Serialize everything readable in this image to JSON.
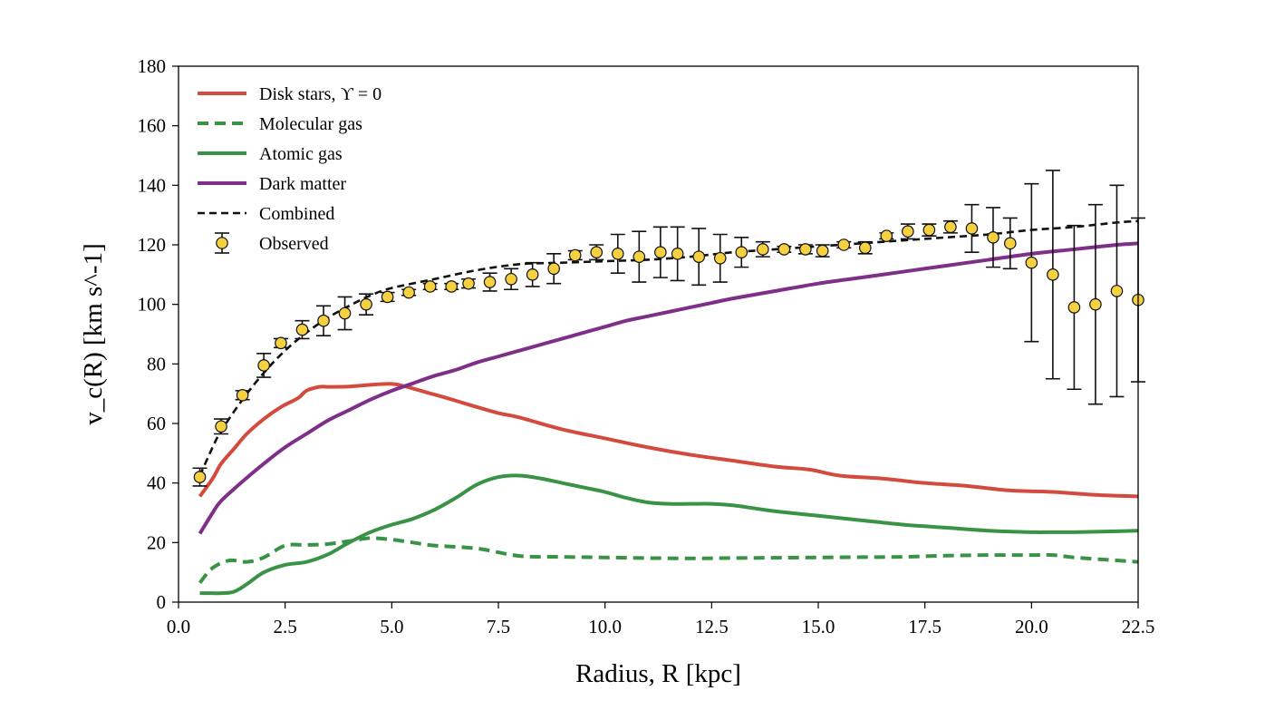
{
  "chart_data": {
    "type": "line",
    "xlabel": "Radius, R [kpc]",
    "ylabel": "v_c(R) [km s^-1]",
    "xlim": [
      0,
      22.5
    ],
    "ylim": [
      0,
      180
    ],
    "xticks": [
      0.0,
      2.5,
      5.0,
      7.5,
      10.0,
      12.5,
      15.0,
      17.5,
      20.0,
      22.5
    ],
    "xtick_labels": [
      "0.0",
      "2.5",
      "5.0",
      "7.5",
      "10.0",
      "12.5",
      "15.0",
      "17.5",
      "20.0",
      "22.5"
    ],
    "yticks": [
      0,
      20,
      40,
      60,
      80,
      100,
      120,
      140,
      160,
      180
    ],
    "ytick_labels": [
      "0",
      "20",
      "40",
      "60",
      "80",
      "100",
      "120",
      "140",
      "160",
      "180"
    ],
    "grid": false,
    "legend_position": "top-left",
    "series": [
      {
        "name": "Disk stars, ϒ = 0",
        "style": "solid",
        "color": "#d24b3e",
        "x": [
          0.5,
          0.8,
          1.0,
          1.3,
          1.6,
          2.0,
          2.4,
          2.8,
          3.0,
          3.3,
          3.5,
          4.0,
          4.5,
          5.0,
          5.3,
          5.8,
          6.3,
          7.0,
          7.5,
          8.0,
          9.0,
          10.0,
          11.0,
          12.0,
          13.0,
          14.0,
          14.8,
          15.5,
          16.5,
          17.5,
          18.5,
          19.5,
          20.5,
          21.5,
          22.5
        ],
        "y": [
          35.5,
          41.5,
          46.5,
          51.5,
          56.5,
          61.5,
          65.5,
          68.5,
          71,
          72.3,
          72.3,
          72.4,
          73,
          73.3,
          72.5,
          70.5,
          68.5,
          65.5,
          63.5,
          62,
          58,
          55,
          52,
          49.5,
          47.5,
          45.5,
          44.5,
          42.5,
          41.5,
          40,
          39,
          37.5,
          37,
          36,
          35.5
        ]
      },
      {
        "name": "Molecular gas",
        "style": "dashed",
        "color": "#3a9247",
        "x": [
          0.5,
          0.8,
          1.2,
          1.6,
          2.0,
          2.5,
          3.0,
          3.5,
          4.0,
          4.5,
          5.0,
          5.5,
          6.0,
          7.0,
          8.0,
          9.0,
          10.0,
          11.0,
          12.0,
          13.0,
          14.0,
          15.0,
          16.0,
          17.0,
          18.0,
          19.0,
          20.0,
          20.5,
          21.0,
          22.0,
          22.5
        ],
        "y": [
          6.5,
          11.5,
          14,
          13.5,
          15,
          19,
          19.2,
          19.5,
          20.5,
          21.5,
          21,
          20,
          19,
          18,
          15.5,
          15.2,
          15,
          14.8,
          14.7,
          14.8,
          14.9,
          15,
          15.1,
          15.2,
          15.6,
          15.8,
          15.8,
          15.8,
          15,
          14,
          13.5
        ]
      },
      {
        "name": "Atomic gas",
        "style": "solid",
        "color": "#3a9247",
        "x": [
          0.5,
          0.8,
          1.0,
          1.3,
          1.6,
          2.0,
          2.5,
          3.0,
          3.5,
          4.0,
          4.5,
          5.0,
          5.5,
          6.0,
          6.5,
          7.0,
          7.5,
          8.0,
          8.5,
          9.0,
          9.5,
          10.0,
          10.5,
          11.0,
          11.5,
          12.0,
          12.5,
          13.0,
          13.5,
          14.0,
          15.0,
          16.0,
          17.0,
          18.0,
          19.0,
          20.0,
          20.5,
          21.0,
          22.0,
          22.5
        ],
        "y": [
          3,
          3,
          3,
          3.5,
          6,
          10,
          12.5,
          13.5,
          16,
          20,
          23.5,
          26,
          28,
          31,
          35,
          39.5,
          42,
          42.5,
          41.5,
          40,
          38.5,
          37,
          35,
          33.5,
          33,
          33,
          33,
          32.5,
          31.5,
          30.5,
          29,
          27.5,
          26,
          25,
          24,
          23.5,
          23.5,
          23.5,
          23.8,
          24
        ]
      },
      {
        "name": "Dark matter",
        "style": "solid",
        "color": "#7e3088",
        "x": [
          0.5,
          0.8,
          1.0,
          1.5,
          2.0,
          2.5,
          3.0,
          3.5,
          4.0,
          4.5,
          5.0,
          5.5,
          6.0,
          6.5,
          7.0,
          7.5,
          8.0,
          8.5,
          9.0,
          9.5,
          10.0,
          10.5,
          11.0,
          11.5,
          12.0,
          12.5,
          13.0,
          14.0,
          15.0,
          16.0,
          17.0,
          18.0,
          19.0,
          20.0,
          21.0,
          22.0,
          22.5
        ],
        "y": [
          23,
          30,
          34,
          40.5,
          46.5,
          52,
          56.5,
          61,
          64.5,
          68,
          71,
          73.5,
          76,
          78,
          80.5,
          82.5,
          84.5,
          86.5,
          88.5,
          90.5,
          92.5,
          94.5,
          96,
          97.5,
          99,
          100.5,
          102,
          104.5,
          107,
          109,
          111,
          113,
          115,
          117,
          118.5,
          120,
          120.5
        ]
      },
      {
        "name": "Combined",
        "style": "dashed",
        "color": "#111111",
        "x": [
          0.5,
          0.8,
          1.0,
          1.5,
          2.0,
          2.5,
          3.0,
          3.5,
          4.0,
          4.5,
          5.0,
          6.0,
          7.0,
          8.0,
          9.0,
          10.0,
          11.0,
          12.0,
          13.0,
          14.0,
          15.0,
          16.0,
          17.0,
          18.0,
          19.0,
          20.0,
          21.0,
          22.0,
          22.5
        ],
        "y": [
          42.5,
          52,
          57.5,
          68,
          77,
          84.5,
          90.5,
          95.5,
          99.5,
          103,
          105.5,
          108.5,
          111.5,
          113.5,
          114,
          114.5,
          115,
          116,
          117.5,
          118.5,
          119.5,
          120.5,
          121.5,
          122.5,
          123.5,
          125,
          126,
          127.5,
          128
        ]
      }
    ],
    "observed": {
      "name": "Observed",
      "marker_color": "#f5d142",
      "x": [
        0.5,
        1.0,
        1.5,
        2.0,
        2.4,
        2.9,
        3.4,
        3.9,
        4.4,
        4.9,
        5.4,
        5.9,
        6.4,
        6.8,
        7.3,
        7.8,
        8.3,
        8.8,
        9.3,
        9.8,
        10.3,
        10.8,
        11.3,
        11.7,
        12.2,
        12.7,
        13.2,
        13.7,
        14.2,
        14.7,
        15.1,
        15.6,
        16.1,
        16.6,
        17.1,
        17.6,
        18.1,
        18.6,
        19.1,
        19.5,
        20.0,
        20.5,
        21.0,
        21.5,
        22.0,
        22.5
      ],
      "y": [
        42,
        59,
        69.5,
        79.5,
        87,
        91.5,
        94.5,
        97,
        100,
        102.5,
        104,
        106,
        106,
        107,
        107.5,
        108.5,
        110,
        112,
        116.5,
        117.5,
        117,
        116,
        117.5,
        117,
        116,
        115.5,
        117.5,
        118.5,
        118.5,
        118.5,
        118,
        120,
        119,
        123,
        124.5,
        125,
        126,
        125.5,
        122.5,
        120.5,
        114,
        110,
        99,
        100,
        104.5,
        101.5
      ],
      "err": [
        3,
        2.5,
        1.5,
        4,
        1.5,
        3,
        5,
        5.5,
        3.5,
        1.5,
        1,
        1,
        1,
        1.5,
        3,
        3.5,
        4,
        5,
        1.5,
        2.5,
        6.5,
        8.5,
        8.5,
        9,
        9.5,
        8,
        5,
        2.5,
        1,
        1.5,
        2,
        1,
        2,
        1,
        2.5,
        2,
        2,
        8,
        10,
        8.5,
        26.5,
        35,
        27.5,
        33.5,
        35.5,
        27.5
      ]
    }
  }
}
